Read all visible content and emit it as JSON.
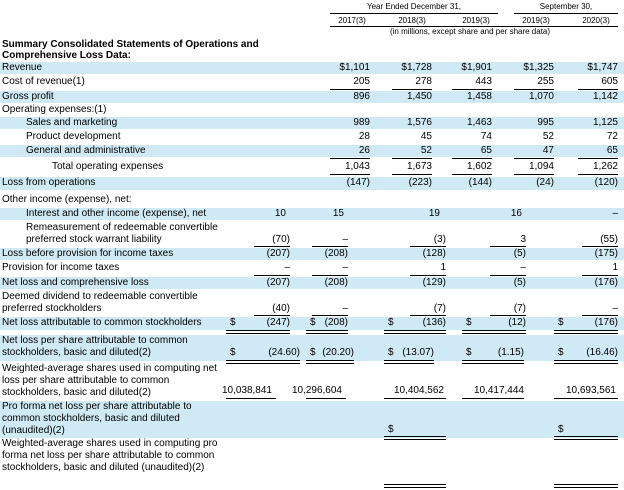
{
  "header": {
    "year_ended": "Year Ended December 31,",
    "nine_months": "September 30,",
    "units": "(in millions, except share and per share data)",
    "cols": [
      "2017(3)",
      "2018(3)",
      "2019(3)",
      "2019(3)",
      "2020(3)"
    ]
  },
  "section_title": "Summary Consolidated Statements of Operations and Comprehensive Loss Data:",
  "rows": {
    "revenue": {
      "label": "Revenue",
      "v": [
        "$1,101",
        "$1,728",
        "$1,901",
        "$1,325",
        "$1,747"
      ]
    },
    "cost_of_revenue": {
      "label": "Cost of revenue(1)",
      "v": [
        "205",
        "278",
        "443",
        "255",
        "605"
      ]
    },
    "gross_profit": {
      "label": "Gross profit",
      "v": [
        "896",
        "1,450",
        "1,458",
        "1,070",
        "1,142"
      ]
    },
    "opex": {
      "label": "Operating expenses:(1)"
    },
    "sales_marketing": {
      "label": "Sales and marketing",
      "v": [
        "989",
        "1,576",
        "1,463",
        "995",
        "1,125"
      ]
    },
    "product_dev": {
      "label": "Product development",
      "v": [
        "28",
        "45",
        "74",
        "52",
        "72"
      ]
    },
    "g_and_a": {
      "label": "General and administrative",
      "v": [
        "26",
        "52",
        "65",
        "47",
        "65"
      ]
    },
    "total_opex": {
      "label": "Total operating expenses",
      "v": [
        "1,043",
        "1,673",
        "1,602",
        "1,094",
        "1,262"
      ]
    },
    "loss_ops": {
      "label": "Loss from operations",
      "v": [
        "(147)",
        "(223)",
        "(144)",
        "(24)",
        "(120)"
      ]
    },
    "other_income": {
      "label": "Other income (expense), net:"
    },
    "interest": {
      "label": "Interest and other income (expense), net",
      "v": [
        "10",
        "15",
        "19",
        "16",
        "–"
      ]
    },
    "remeasure": {
      "label": "Remeasurement of redeemable convertible preferred stock warrant liability",
      "v": [
        "(70)",
        "–",
        "(3)",
        "3",
        "(55)"
      ]
    },
    "loss_before_tax": {
      "label": "Loss before provision for income taxes",
      "v": [
        "(207)",
        "(208)",
        "(128)",
        "(5)",
        "(175)"
      ]
    },
    "provision": {
      "label": "Provision for income taxes",
      "v": [
        "–",
        "–",
        "1",
        "–",
        "1"
      ]
    },
    "net_loss": {
      "label": "Net loss and comprehensive loss",
      "v": [
        "(207)",
        "(208)",
        "(129)",
        "(5)",
        "(176)"
      ]
    },
    "deemed_div": {
      "label": "Deemed dividend to redeemable convertible preferred stockholders",
      "v": [
        "(40)",
        "–",
        "(7)",
        "(7)",
        "–"
      ]
    },
    "nl_common": {
      "label": "Net loss attributable to common stockholders",
      "v": [
        "(247)",
        "(208)",
        "(136)",
        "(12)",
        "(176)"
      ]
    },
    "nl_per_share": {
      "label": "Net loss per share attributable to common stockholders, basic and diluted(2)",
      "v": [
        "(24.60)",
        "(20.20)",
        "(13.07)",
        "(1.15)",
        "(16.46)"
      ]
    },
    "wa_shares": {
      "label": "Weighted-average shares used in computing net loss per share attributable to common stockholders, basic and diluted(2)",
      "v": [
        "10,038,841",
        "10,296,604",
        "10,404,562",
        "10,417,444",
        "10,693,561"
      ]
    },
    "pro_forma_nl": {
      "label": "Pro forma net loss per share attributable to common stockholders, basic and diluted (unaudited)(2)"
    },
    "pro_forma_wa": {
      "label": "Weighted-average shares used in computing pro forma net loss per share attributable to common stockholders, basic and diluted (unaudited)(2)"
    }
  },
  "dollar_sign": "$"
}
